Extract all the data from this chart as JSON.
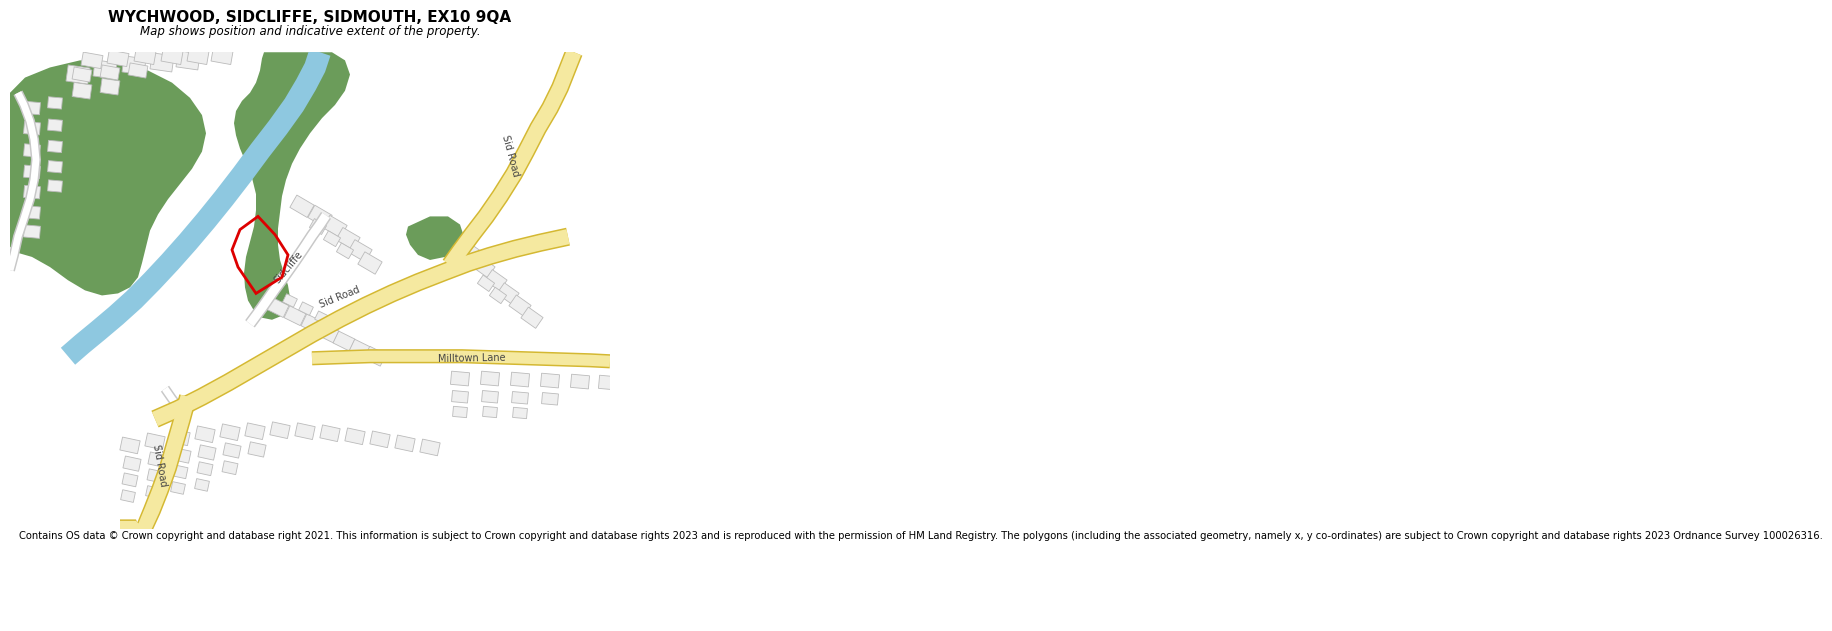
{
  "title": "WYCHWOOD, SIDCLIFFE, SIDMOUTH, EX10 9QA",
  "subtitle": "Map shows position and indicative extent of the property.",
  "footer": "Contains OS data © Crown copyright and database right 2021. This information is subject to Crown copyright and database rights 2023 and is reproduced with the permission of HM Land Registry. The polygons (including the associated geometry, namely x, y co-ordinates) are subject to Crown copyright and database rights 2023 Ordnance Survey 100026316.",
  "bg_color": "#ffffff",
  "map_bg": "#ffffff",
  "road_fill": "#f5e9a0",
  "road_outline": "#d4b832",
  "minor_road_fill": "#ffffff",
  "minor_road_outline": "#c8c8c8",
  "building_fill": "#e8e8e8",
  "building_outline": "#bbbbbb",
  "green_color": "#6b9c5a",
  "water_color": "#8ec8e0",
  "red_color": "#dd0000",
  "label_color": "#444444",
  "title_size": 11,
  "subtitle_size": 8.5,
  "footer_size": 7.2
}
